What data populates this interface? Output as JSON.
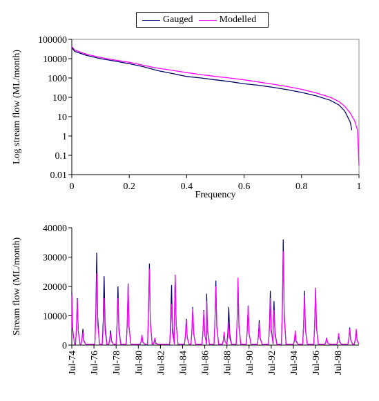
{
  "chart_data": [
    {
      "type": "line",
      "xlabel": "Frequency",
      "ylabel": "Log stream flow (ML/month)",
      "yscale": "log",
      "xlim": [
        0,
        1
      ],
      "ylim": [
        0.01,
        100000
      ],
      "x_ticks": [
        "0",
        "0.2",
        "0.4",
        "0.6",
        "0.8",
        "1"
      ],
      "y_ticks": [
        "0.01",
        "0.1",
        "1",
        "10",
        "100",
        "1000",
        "10000",
        "100000"
      ],
      "grid": false,
      "legend_position": "top-center",
      "series": [
        {
          "name": "Gauged",
          "color": "#000066",
          "x": [
            0,
            0.01,
            0.05,
            0.1,
            0.15,
            0.2,
            0.25,
            0.3,
            0.35,
            0.4,
            0.45,
            0.5,
            0.55,
            0.6,
            0.65,
            0.7,
            0.75,
            0.8,
            0.85,
            0.9,
            0.93,
            0.95,
            0.96,
            0.97,
            0.975
          ],
          "y": [
            38000,
            24000,
            15000,
            10000,
            7500,
            5500,
            3800,
            2400,
            1700,
            1200,
            1000,
            800,
            650,
            500,
            420,
            330,
            250,
            180,
            120,
            70,
            40,
            20,
            10,
            5,
            2
          ]
        },
        {
          "name": "Modelled",
          "color": "#ff00ff",
          "x": [
            0,
            0.01,
            0.05,
            0.1,
            0.15,
            0.2,
            0.25,
            0.3,
            0.35,
            0.4,
            0.45,
            0.5,
            0.55,
            0.6,
            0.65,
            0.7,
            0.75,
            0.8,
            0.85,
            0.9,
            0.93,
            0.95,
            0.97,
            0.985,
            0.995,
            1.0
          ],
          "y": [
            42000,
            28000,
            17000,
            11500,
            8500,
            6500,
            4500,
            3200,
            2500,
            1900,
            1500,
            1200,
            1000,
            800,
            620,
            480,
            360,
            260,
            170,
            100,
            60,
            35,
            15,
            6,
            2,
            0.03
          ]
        }
      ]
    },
    {
      "type": "line",
      "xlabel": "",
      "ylabel": "Stream flow (ML/month)",
      "ylim": [
        0,
        40000
      ],
      "y_ticks": [
        "0",
        "10000",
        "20000",
        "30000",
        "40000"
      ],
      "x_range": [
        "Jul-74",
        "Jun-00"
      ],
      "x_ticks": [
        "Jul-74",
        "Jul-76",
        "Jul-78",
        "Jul-80",
        "Jul-82",
        "Jul-84",
        "Jul-86",
        "Jul-88",
        "Jul-90",
        "Jul-92",
        "Jul-94",
        "Jul-96",
        "Jul-98"
      ],
      "grid": false,
      "series": [
        {
          "name": "Gauged",
          "color": "#000066",
          "peaks": [
            {
              "date": "Jul-74",
              "value": 18000
            },
            {
              "date": "Jan-75",
              "value": 16000
            },
            {
              "date": "Jul-75",
              "value": 5500
            },
            {
              "date": "Oct-76",
              "value": 31500
            },
            {
              "date": "Jan-78",
              "value": 5000
            },
            {
              "date": "Jun-77",
              "value": 23500
            },
            {
              "date": "Sep-78",
              "value": 20000
            },
            {
              "date": "Aug-79",
              "value": 21000
            },
            {
              "date": "Nov-80",
              "value": 3000
            },
            {
              "date": "Jul-81",
              "value": 27800
            },
            {
              "date": "Jan-82",
              "value": 2000
            },
            {
              "date": "Jul-83",
              "value": 20500
            },
            {
              "date": "Nov-83",
              "value": 24000
            },
            {
              "date": "Nov-84",
              "value": 9000
            },
            {
              "date": "Jun-85",
              "value": 13000
            },
            {
              "date": "Jun-86",
              "value": 12000
            },
            {
              "date": "Sep-86",
              "value": 17500
            },
            {
              "date": "Jul-87",
              "value": 22000
            },
            {
              "date": "Apr-88",
              "value": 4000
            },
            {
              "date": "Sep-88",
              "value": 13000
            },
            {
              "date": "Jul-89",
              "value": 21500
            },
            {
              "date": "Jun-90",
              "value": 13500
            },
            {
              "date": "Jun-91",
              "value": 8500
            },
            {
              "date": "Jun-92",
              "value": 18500
            },
            {
              "date": "Oct-92",
              "value": 15000
            },
            {
              "date": "Aug-93",
              "value": 36000
            },
            {
              "date": "Sep-94",
              "value": 4000
            },
            {
              "date": "Jul-95",
              "value": 18500
            },
            {
              "date": "Jul-96",
              "value": 19500
            },
            {
              "date": "Jul-97",
              "value": 2500
            },
            {
              "date": "Aug-98",
              "value": 3500
            },
            {
              "date": "Aug-99",
              "value": 6000
            },
            {
              "date": "Mar-00",
              "value": 5000
            }
          ]
        },
        {
          "name": "Modelled",
          "color": "#ff00ff",
          "peaks": [
            {
              "date": "Jul-74",
              "value": 17000
            },
            {
              "date": "Jan-75",
              "value": 15500
            },
            {
              "date": "Jul-75",
              "value": 4500
            },
            {
              "date": "Oct-76",
              "value": 24500
            },
            {
              "date": "Jan-78",
              "value": 4000
            },
            {
              "date": "Jun-77",
              "value": 16000
            },
            {
              "date": "Sep-78",
              "value": 16000
            },
            {
              "date": "Aug-79",
              "value": 21000
            },
            {
              "date": "Nov-80",
              "value": 3500
            },
            {
              "date": "Jul-81",
              "value": 26000
            },
            {
              "date": "Jan-82",
              "value": 2500
            },
            {
              "date": "Jul-83",
              "value": 14000
            },
            {
              "date": "Nov-83",
              "value": 24000
            },
            {
              "date": "Nov-84",
              "value": 8500
            },
            {
              "date": "Jun-85",
              "value": 12500
            },
            {
              "date": "Jun-86",
              "value": 11500
            },
            {
              "date": "Sep-86",
              "value": 15000
            },
            {
              "date": "Jul-87",
              "value": 20000
            },
            {
              "date": "Apr-88",
              "value": 4500
            },
            {
              "date": "Sep-88",
              "value": 8000
            },
            {
              "date": "Jul-89",
              "value": 23000
            },
            {
              "date": "Jun-90",
              "value": 13500
            },
            {
              "date": "Jun-91",
              "value": 7500
            },
            {
              "date": "Jun-92",
              "value": 16000
            },
            {
              "date": "Oct-92",
              "value": 12000
            },
            {
              "date": "Aug-93",
              "value": 32000
            },
            {
              "date": "Sep-94",
              "value": 5000
            },
            {
              "date": "Jul-95",
              "value": 17000
            },
            {
              "date": "Jul-96",
              "value": 19500
            },
            {
              "date": "Jul-97",
              "value": 2500
            },
            {
              "date": "Aug-98",
              "value": 4000
            },
            {
              "date": "Aug-99",
              "value": 5500
            },
            {
              "date": "Mar-00",
              "value": 5500
            }
          ]
        }
      ]
    }
  ]
}
